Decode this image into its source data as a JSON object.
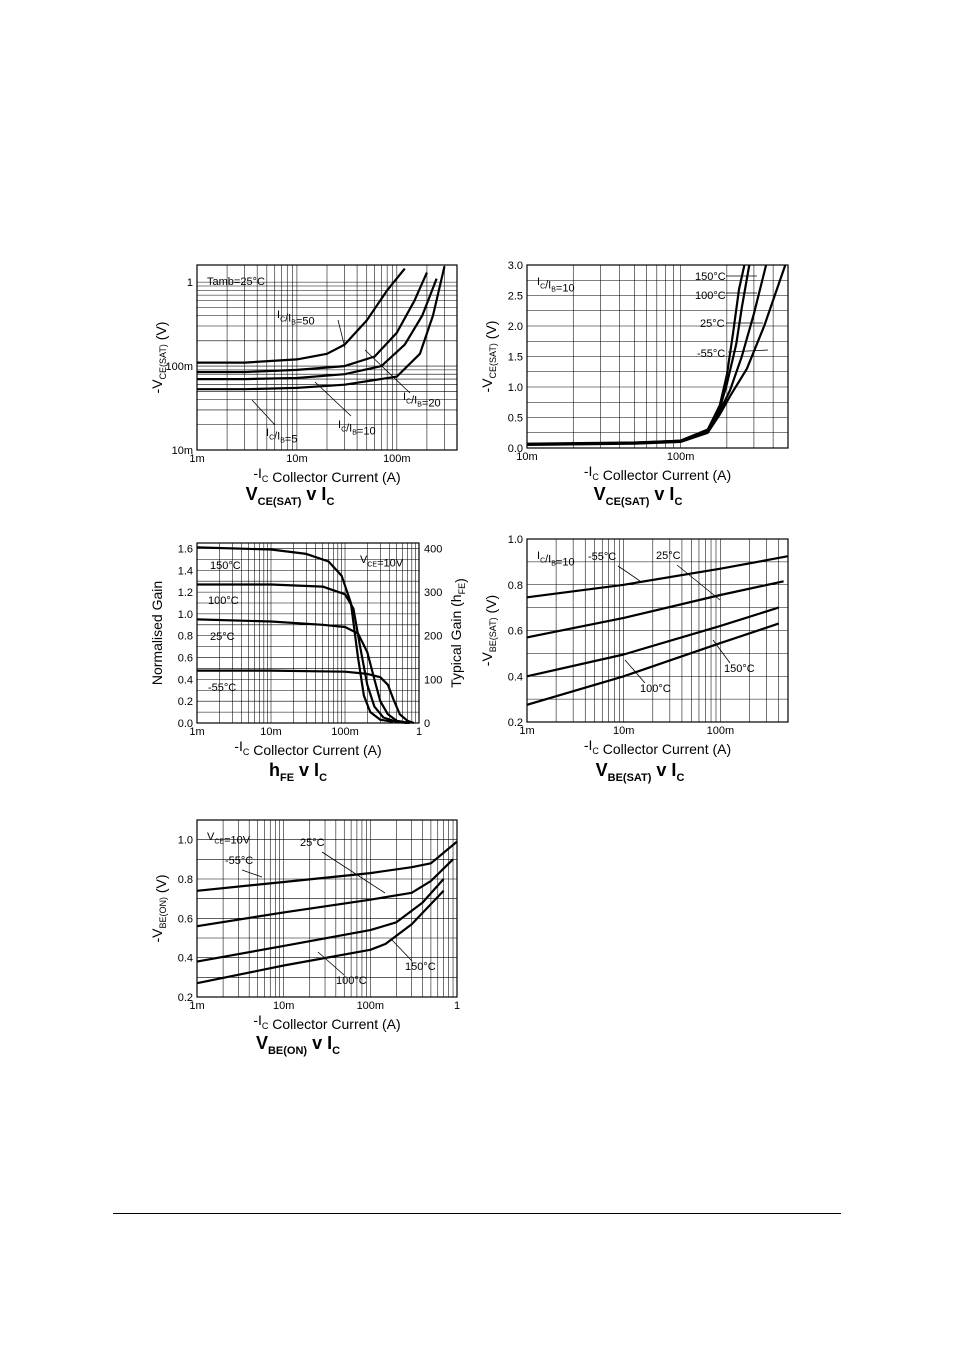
{
  "chart_data": [
    {
      "id": "c1",
      "type": "line",
      "title": "V_CE(SAT) v I_C",
      "title_parts": {
        "main": "V",
        "sub": "CE(SAT)",
        "mid": " v I",
        "sub2": "C"
      },
      "xlabel": {
        "pre": "-I",
        "sub": "C",
        "rest": "  Collector Current (A)"
      },
      "ylabel": {
        "pre": "-V",
        "sub": "CE(SAT)",
        "rest": "  (V)"
      },
      "xscale": "log",
      "yscale": "log",
      "xlim": [
        0.001,
        0.4
      ],
      "ylim": [
        0.01,
        1.6
      ],
      "xticks": [
        {
          "v": 0.001,
          "t": "1m"
        },
        {
          "v": 0.01,
          "t": "10m"
        },
        {
          "v": 0.1,
          "t": "100m"
        }
      ],
      "yticks": [
        {
          "v": 0.01,
          "t": "10m"
        },
        {
          "v": 0.1,
          "t": "100m"
        },
        {
          "v": 1,
          "t": "1"
        }
      ],
      "annotation": "Tamb=25°C",
      "series": [
        {
          "name": "IC/IB=50",
          "x": [
            0.001,
            0.003,
            0.01,
            0.02,
            0.03,
            0.05,
            0.08,
            0.12
          ],
          "y": [
            0.11,
            0.11,
            0.12,
            0.14,
            0.18,
            0.35,
            0.8,
            1.45
          ]
        },
        {
          "name": "IC/IB=20",
          "x": [
            0.001,
            0.003,
            0.01,
            0.03,
            0.06,
            0.1,
            0.15,
            0.2
          ],
          "y": [
            0.085,
            0.085,
            0.09,
            0.1,
            0.13,
            0.25,
            0.6,
            1.3
          ]
        },
        {
          "name": "IC/IB=10",
          "x": [
            0.001,
            0.003,
            0.01,
            0.03,
            0.07,
            0.12,
            0.18,
            0.25
          ],
          "y": [
            0.07,
            0.07,
            0.072,
            0.08,
            0.1,
            0.18,
            0.4,
            1.1
          ]
        },
        {
          "name": "IC/IB=5",
          "x": [
            0.001,
            0.003,
            0.01,
            0.03,
            0.1,
            0.17,
            0.23,
            0.3
          ],
          "y": [
            0.053,
            0.053,
            0.055,
            0.06,
            0.075,
            0.14,
            0.4,
            1.55
          ]
        }
      ],
      "labels": [
        {
          "pre": "I",
          "s1": "C",
          "mid": "/I",
          "s2": "B",
          "post": "=50"
        },
        {
          "pre": "I",
          "s1": "C",
          "mid": "/I",
          "s2": "B",
          "post": "=20"
        },
        {
          "pre": "I",
          "s1": "C",
          "mid": "/I",
          "s2": "B",
          "post": "=10"
        },
        {
          "pre": "I",
          "s1": "C",
          "mid": "/I",
          "s2": "B",
          "post": "=5"
        }
      ]
    },
    {
      "id": "c2",
      "type": "line",
      "title": "V_CE(SAT) v I_C",
      "title_parts": {
        "main": "V",
        "sub": "CE(SAT)",
        "mid": " v I",
        "sub2": "C"
      },
      "xlabel": {
        "pre": "-I",
        "sub": "C",
        "rest": "  Collector Current (A)"
      },
      "ylabel": {
        "pre": "-V",
        "sub": "CE(SAT)",
        "rest": "  (V)"
      },
      "xscale": "log",
      "yscale": "linear",
      "xlim": [
        0.01,
        0.5
      ],
      "ylim": [
        0,
        3
      ],
      "xticks": [
        {
          "v": 0.01,
          "t": "10m"
        },
        {
          "v": 0.1,
          "t": "100m"
        }
      ],
      "yticks": [
        {
          "v": 0,
          "t": "0.0"
        },
        {
          "v": 0.5,
          "t": "0.5"
        },
        {
          "v": 1,
          "t": "1.0"
        },
        {
          "v": 1.5,
          "t": "1.5"
        },
        {
          "v": 2,
          "t": "2.0"
        },
        {
          "v": 2.5,
          "t": "2.5"
        },
        {
          "v": 3,
          "t": "3.0"
        }
      ],
      "annotation": {
        "pre": "I",
        "s1": "C",
        "mid": "/I",
        "s2": "B",
        "post": "=10"
      },
      "series": [
        {
          "name": "150°C",
          "x": [
            0.01,
            0.05,
            0.1,
            0.15,
            0.18,
            0.2,
            0.22,
            0.24,
            0.26
          ],
          "y": [
            0.07,
            0.09,
            0.12,
            0.3,
            0.7,
            1.2,
            1.9,
            2.6,
            3.0
          ]
        },
        {
          "name": "100°C",
          "x": [
            0.01,
            0.05,
            0.1,
            0.15,
            0.18,
            0.2,
            0.23,
            0.25,
            0.28
          ],
          "y": [
            0.065,
            0.085,
            0.12,
            0.3,
            0.65,
            1.05,
            1.7,
            2.3,
            3.0
          ]
        },
        {
          "name": "25°C",
          "x": [
            0.01,
            0.05,
            0.1,
            0.15,
            0.18,
            0.21,
            0.25,
            0.3,
            0.36
          ],
          "y": [
            0.06,
            0.08,
            0.12,
            0.28,
            0.6,
            0.95,
            1.5,
            2.2,
            3.0
          ]
        },
        {
          "name": "-55°C",
          "x": [
            0.01,
            0.05,
            0.1,
            0.15,
            0.18,
            0.21,
            0.27,
            0.35,
            0.48
          ],
          "y": [
            0.05,
            0.07,
            0.1,
            0.25,
            0.55,
            0.85,
            1.3,
            2.0,
            3.0
          ]
        }
      ]
    },
    {
      "id": "c3",
      "type": "line",
      "title": "h_FE v I_C",
      "title_parts": {
        "main": "h",
        "sub": "FE",
        "mid": " v I",
        "sub2": "C"
      },
      "xlabel": {
        "pre": "-I",
        "sub": "C",
        "rest": "  Collector Current (A)"
      },
      "ylabel": "Normalised Gain",
      "y2label": {
        "pre": "Typical Gain (h",
        "sub": "FE",
        "rest": ")"
      },
      "xscale": "log",
      "yscale": "linear",
      "xlim": [
        0.001,
        1
      ],
      "ylim": [
        0,
        1.65
      ],
      "xticks": [
        {
          "v": 0.001,
          "t": "1m"
        },
        {
          "v": 0.01,
          "t": "10m"
        },
        {
          "v": 0.1,
          "t": "100m"
        },
        {
          "v": 1,
          "t": "1"
        }
      ],
      "yticks": [
        {
          "v": 0,
          "t": "0.0"
        },
        {
          "v": 0.2,
          "t": "0.2"
        },
        {
          "v": 0.4,
          "t": "0.4"
        },
        {
          "v": 0.6,
          "t": "0.6"
        },
        {
          "v": 0.8,
          "t": "0.8"
        },
        {
          "v": 1.0,
          "t": "1.0"
        },
        {
          "v": 1.2,
          "t": "1.2"
        },
        {
          "v": 1.4,
          "t": "1.4"
        },
        {
          "v": 1.6,
          "t": "1.6"
        }
      ],
      "y2ticks": [
        {
          "v": 0,
          "t": "0"
        },
        {
          "v": 100,
          "t": "100"
        },
        {
          "v": 200,
          "t": "200"
        },
        {
          "v": 300,
          "t": "300"
        },
        {
          "v": 400,
          "t": "400"
        }
      ],
      "y2lim": [
        0,
        412.5
      ],
      "annotation": {
        "pre": "V",
        "s1": "CE",
        "post": "=10V"
      },
      "series": [
        {
          "name": "150°C",
          "x": [
            0.001,
            0.01,
            0.03,
            0.06,
            0.09,
            0.12,
            0.15,
            0.18,
            0.22,
            0.3,
            0.45
          ],
          "y": [
            1.61,
            1.59,
            1.55,
            1.48,
            1.35,
            1.1,
            0.6,
            0.25,
            0.1,
            0.03,
            0.01
          ]
        },
        {
          "name": "100°C",
          "x": [
            0.001,
            0.01,
            0.05,
            0.1,
            0.13,
            0.16,
            0.2,
            0.25,
            0.33,
            0.5,
            0.7
          ],
          "y": [
            1.27,
            1.27,
            1.25,
            1.18,
            1.05,
            0.7,
            0.35,
            0.15,
            0.05,
            0.01,
            0.0
          ]
        },
        {
          "name": "25°C",
          "x": [
            0.001,
            0.01,
            0.05,
            0.1,
            0.15,
            0.2,
            0.25,
            0.3,
            0.38,
            0.5,
            0.75
          ],
          "y": [
            0.95,
            0.93,
            0.9,
            0.88,
            0.82,
            0.65,
            0.4,
            0.2,
            0.08,
            0.02,
            0.0
          ]
        },
        {
          "name": "-55°C",
          "x": [
            0.001,
            0.01,
            0.1,
            0.2,
            0.3,
            0.38,
            0.45,
            0.55,
            0.7,
            0.85
          ],
          "y": [
            0.48,
            0.48,
            0.47,
            0.45,
            0.42,
            0.35,
            0.22,
            0.08,
            0.02,
            0.0
          ]
        }
      ]
    },
    {
      "id": "c4",
      "type": "line",
      "title": "V_BE(SAT) v I_C",
      "title_parts": {
        "main": "V",
        "sub": "BE(SAT)",
        "mid": " v I",
        "sub2": "C"
      },
      "xlabel": {
        "pre": "-I",
        "sub": "C",
        "rest": "  Collector Current (A)"
      },
      "ylabel": {
        "pre": "-V",
        "sub": "BE(SAT)",
        "rest": "  (V)"
      },
      "xscale": "log",
      "yscale": "linear",
      "xlim": [
        0.001,
        0.5
      ],
      "ylim": [
        0.2,
        1.0
      ],
      "xticks": [
        {
          "v": 0.001,
          "t": "1m"
        },
        {
          "v": 0.01,
          "t": "10m"
        },
        {
          "v": 0.1,
          "t": "100m"
        }
      ],
      "yticks": [
        {
          "v": 0.2,
          "t": "0.2"
        },
        {
          "v": 0.4,
          "t": "0.4"
        },
        {
          "v": 0.6,
          "t": "0.6"
        },
        {
          "v": 0.8,
          "t": "0.8"
        },
        {
          "v": 1.0,
          "t": "1.0"
        }
      ],
      "annotation": {
        "pre": "I",
        "s1": "C",
        "mid": "/I",
        "s2": "B",
        "post": "=10"
      },
      "series": [
        {
          "name": "-55°C",
          "x": [
            0.001,
            0.01,
            0.1,
            0.5
          ],
          "y": [
            0.745,
            0.8,
            0.87,
            0.925
          ]
        },
        {
          "name": "25°C",
          "x": [
            0.001,
            0.01,
            0.1,
            0.45
          ],
          "y": [
            0.57,
            0.655,
            0.755,
            0.815
          ]
        },
        {
          "name": "100°C",
          "x": [
            0.001,
            0.01,
            0.1,
            0.4
          ],
          "y": [
            0.4,
            0.495,
            0.62,
            0.7
          ]
        },
        {
          "name": "150°C",
          "x": [
            0.001,
            0.01,
            0.1,
            0.4
          ],
          "y": [
            0.275,
            0.4,
            0.545,
            0.63
          ]
        }
      ]
    },
    {
      "id": "c5",
      "type": "line",
      "title": "V_BE(ON) v I_C",
      "title_parts": {
        "main": "V",
        "sub": "BE(ON)",
        "mid": " v I",
        "sub2": "C"
      },
      "xlabel": {
        "pre": "-I",
        "sub": "C",
        "rest": "  Collector Current (A)"
      },
      "ylabel": {
        "pre": "-V",
        "sub": "BE(ON)",
        "rest": "  (V)"
      },
      "xscale": "log",
      "yscale": "linear",
      "xlim": [
        0.001,
        1
      ],
      "ylim": [
        0.2,
        1.1
      ],
      "xticks": [
        {
          "v": 0.001,
          "t": "1m"
        },
        {
          "v": 0.01,
          "t": "10m"
        },
        {
          "v": 0.1,
          "t": "100m"
        },
        {
          "v": 1,
          "t": "1"
        }
      ],
      "yticks": [
        {
          "v": 0.2,
          "t": "0.2"
        },
        {
          "v": 0.4,
          "t": "0.4"
        },
        {
          "v": 0.6,
          "t": "0.6"
        },
        {
          "v": 0.8,
          "t": "0.8"
        },
        {
          "v": 1.0,
          "t": "1.0"
        }
      ],
      "annotation": {
        "pre": "V",
        "s1": "CE",
        "post": "=10V"
      },
      "series": [
        {
          "name": "-55°C",
          "x": [
            0.001,
            0.01,
            0.1,
            0.3,
            0.5,
            1.0
          ],
          "y": [
            0.74,
            0.785,
            0.83,
            0.86,
            0.88,
            0.99
          ]
        },
        {
          "name": "25°C",
          "x": [
            0.001,
            0.01,
            0.1,
            0.3,
            0.5,
            0.9
          ],
          "y": [
            0.56,
            0.63,
            0.695,
            0.73,
            0.79,
            0.9
          ]
        },
        {
          "name": "100°C",
          "x": [
            0.001,
            0.01,
            0.1,
            0.2,
            0.4,
            0.7
          ],
          "y": [
            0.38,
            0.46,
            0.54,
            0.58,
            0.68,
            0.8
          ]
        },
        {
          "name": "150°C",
          "x": [
            0.001,
            0.01,
            0.1,
            0.15,
            0.3,
            0.7
          ],
          "y": [
            0.27,
            0.36,
            0.44,
            0.47,
            0.57,
            0.74
          ]
        }
      ]
    }
  ]
}
